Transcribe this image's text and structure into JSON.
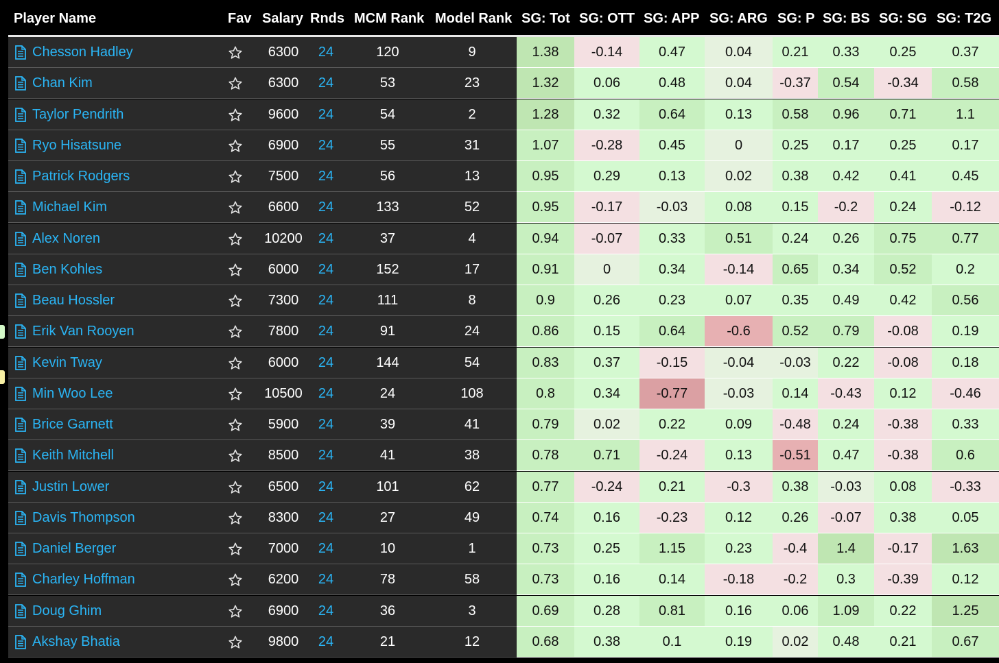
{
  "table": {
    "columns": [
      "Player Name",
      "Fav",
      "Salary",
      "Rnds",
      "MCM Rank",
      "Model Rank",
      "SG: Tot",
      "SG: OTT",
      "SG: APP",
      "SG: ARG",
      "SG: P",
      "SG: BS",
      "SG: SG",
      "SG: T2G"
    ],
    "rows": [
      {
        "name": "Chesson Hadley",
        "salary": "6300",
        "rnds": "24",
        "mcm": "120",
        "model": "9",
        "sg": [
          "1.38",
          "-0.14",
          "0.47",
          "0.04",
          "0.21",
          "0.33",
          "0.25",
          "0.37"
        ]
      },
      {
        "name": "Chan Kim",
        "salary": "6300",
        "rnds": "24",
        "mcm": "53",
        "model": "23",
        "sg": [
          "1.32",
          "0.06",
          "0.48",
          "0.04",
          "-0.37",
          "0.54",
          "-0.34",
          "0.58"
        ]
      },
      {
        "name": "Taylor Pendrith",
        "salary": "9600",
        "rnds": "24",
        "mcm": "54",
        "model": "2",
        "sg": [
          "1.28",
          "0.32",
          "0.64",
          "0.13",
          "0.58",
          "0.96",
          "0.71",
          "1.1"
        ]
      },
      {
        "name": "Ryo Hisatsune",
        "salary": "6900",
        "rnds": "24",
        "mcm": "55",
        "model": "31",
        "sg": [
          "1.07",
          "-0.28",
          "0.45",
          "0",
          "0.25",
          "0.17",
          "0.25",
          "0.17"
        ]
      },
      {
        "name": "Patrick Rodgers",
        "salary": "7500",
        "rnds": "24",
        "mcm": "56",
        "model": "13",
        "sg": [
          "0.95",
          "0.29",
          "0.13",
          "0.02",
          "0.38",
          "0.42",
          "0.41",
          "0.45"
        ]
      },
      {
        "name": "Michael Kim",
        "salary": "6600",
        "rnds": "24",
        "mcm": "133",
        "model": "52",
        "sg": [
          "0.95",
          "-0.17",
          "-0.03",
          "0.08",
          "0.15",
          "-0.2",
          "0.24",
          "-0.12"
        ]
      },
      {
        "name": "Alex Noren",
        "salary": "10200",
        "rnds": "24",
        "mcm": "37",
        "model": "4",
        "sg": [
          "0.94",
          "-0.07",
          "0.33",
          "0.51",
          "0.24",
          "0.26",
          "0.75",
          "0.77"
        ]
      },
      {
        "name": "Ben Kohles",
        "salary": "6000",
        "rnds": "24",
        "mcm": "152",
        "model": "17",
        "sg": [
          "0.91",
          "0",
          "0.34",
          "-0.14",
          "0.65",
          "0.34",
          "0.52",
          "0.2"
        ]
      },
      {
        "name": "Beau Hossler",
        "salary": "7300",
        "rnds": "24",
        "mcm": "111",
        "model": "8",
        "sg": [
          "0.9",
          "0.26",
          "0.23",
          "0.07",
          "0.35",
          "0.49",
          "0.42",
          "0.56"
        ]
      },
      {
        "name": "Erik Van Rooyen",
        "salary": "7800",
        "rnds": "24",
        "mcm": "91",
        "model": "24",
        "sg": [
          "0.86",
          "0.15",
          "0.64",
          "-0.6",
          "0.52",
          "0.79",
          "-0.08",
          "0.19"
        ]
      },
      {
        "name": "Kevin Tway",
        "salary": "6000",
        "rnds": "24",
        "mcm": "144",
        "model": "54",
        "sg": [
          "0.83",
          "0.37",
          "-0.15",
          "-0.04",
          "-0.03",
          "0.22",
          "-0.08",
          "0.18"
        ]
      },
      {
        "name": "Min Woo Lee",
        "salary": "10500",
        "rnds": "24",
        "mcm": "24",
        "model": "108",
        "sg": [
          "0.8",
          "0.34",
          "-0.77",
          "-0.03",
          "0.14",
          "-0.43",
          "0.12",
          "-0.46"
        ]
      },
      {
        "name": "Brice Garnett",
        "salary": "5900",
        "rnds": "24",
        "mcm": "39",
        "model": "41",
        "sg": [
          "0.79",
          "0.02",
          "0.22",
          "0.09",
          "-0.48",
          "0.24",
          "-0.38",
          "0.33"
        ]
      },
      {
        "name": "Keith Mitchell",
        "salary": "8500",
        "rnds": "24",
        "mcm": "41",
        "model": "38",
        "sg": [
          "0.78",
          "0.71",
          "-0.24",
          "0.13",
          "-0.51",
          "0.47",
          "-0.38",
          "0.6"
        ]
      },
      {
        "name": "Justin Lower",
        "salary": "6500",
        "rnds": "24",
        "mcm": "101",
        "model": "62",
        "sg": [
          "0.77",
          "-0.24",
          "0.21",
          "-0.3",
          "0.38",
          "-0.03",
          "0.08",
          "-0.33"
        ]
      },
      {
        "name": "Davis Thompson",
        "salary": "8300",
        "rnds": "24",
        "mcm": "27",
        "model": "49",
        "sg": [
          "0.74",
          "0.16",
          "-0.23",
          "0.12",
          "0.26",
          "-0.07",
          "0.38",
          "0.05"
        ]
      },
      {
        "name": "Daniel Berger",
        "salary": "7000",
        "rnds": "24",
        "mcm": "10",
        "model": "1",
        "sg": [
          "0.73",
          "0.25",
          "1.15",
          "0.23",
          "-0.4",
          "1.4",
          "-0.17",
          "1.63"
        ]
      },
      {
        "name": "Charley Hoffman",
        "salary": "6200",
        "rnds": "24",
        "mcm": "78",
        "model": "58",
        "sg": [
          "0.73",
          "0.16",
          "0.14",
          "-0.18",
          "-0.2",
          "0.3",
          "-0.39",
          "0.12"
        ]
      },
      {
        "name": "Doug Ghim",
        "salary": "6900",
        "rnds": "24",
        "mcm": "36",
        "model": "3",
        "sg": [
          "0.69",
          "0.28",
          "0.81",
          "0.16",
          "0.06",
          "1.09",
          "0.22",
          "1.25"
        ]
      },
      {
        "name": "Akshay Bhatia",
        "salary": "9800",
        "rnds": "24",
        "mcm": "21",
        "model": "12",
        "sg": [
          "0.68",
          "0.38",
          "0.1",
          "0.19",
          "0.02",
          "0.48",
          "0.21",
          "0.67"
        ]
      }
    ]
  },
  "colors": {
    "row_bg": "#2a2a2a",
    "name_link": "#2ab5f5",
    "rnds_link": "#2ab5f5",
    "sg_good": "#d4f9d0",
    "sg_bad": "#f3dedf",
    "sg_neutral": "#e4f5de"
  },
  "icons": {
    "player_icon": "document-icon",
    "fav_icon": "star-outline-icon"
  }
}
